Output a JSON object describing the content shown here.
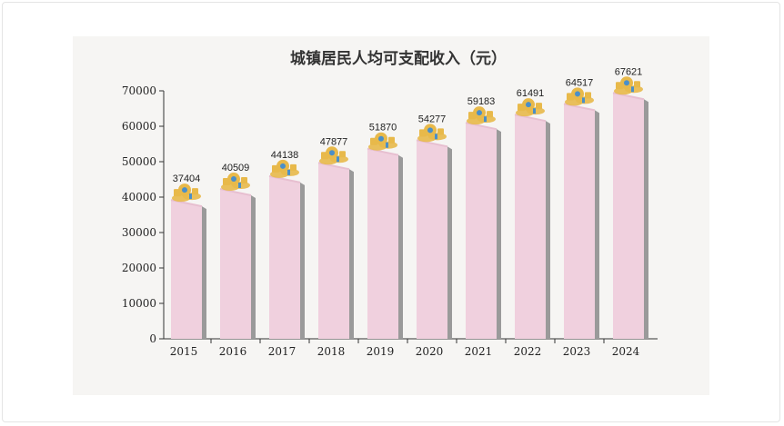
{
  "chart_data": {
    "type": "bar",
    "title": "城镇居民人均可支配收入（元）",
    "xlabel": "",
    "ylabel": "",
    "categories": [
      "2015",
      "2016",
      "2017",
      "2018",
      "2019",
      "2020",
      "2021",
      "2022",
      "2023",
      "2024"
    ],
    "values": [
      37404,
      40509,
      44138,
      47877,
      51870,
      54277,
      59183,
      61491,
      64517,
      67621
    ],
    "ylim": [
      0,
      70000
    ],
    "yticks": [
      0,
      10000,
      20000,
      30000,
      40000,
      50000,
      60000,
      70000
    ],
    "grid": false,
    "legend": "none",
    "colors": {
      "bar_face": "#f0d0de",
      "bar_side": "#9a9a9a",
      "bar_top": "#e7bfd0",
      "icon_gold": "#e8b94a",
      "icon_blue": "#4a8fc9"
    }
  }
}
